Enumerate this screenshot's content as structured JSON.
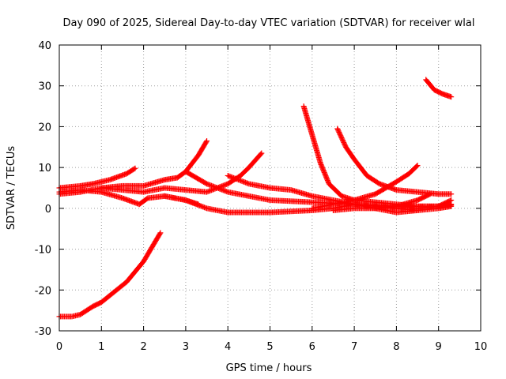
{
  "chart_data": {
    "type": "scatter",
    "title": "Day 090 of 2025, Sidereal Day-to-day VTEC variation (SDTVAR) for receiver wlal",
    "xlabel": "GPS time / hours",
    "ylabel": "SDTVAR / TECUs",
    "xlim": [
      0,
      10
    ],
    "ylim": [
      -30,
      40
    ],
    "x_ticks": [
      0,
      1,
      2,
      3,
      4,
      5,
      6,
      7,
      8,
      9,
      10
    ],
    "y_ticks": [
      -30,
      -20,
      -10,
      0,
      10,
      20,
      30,
      40
    ],
    "grid": true,
    "marker": "+",
    "color": "#ff0000",
    "series": [
      {
        "x": [
          0,
          0.5,
          0.8,
          1.2,
          1.6,
          1.8
        ],
        "y": [
          5,
          5.5,
          6,
          7,
          8.5,
          9.8
        ]
      },
      {
        "x": [
          0,
          0.5,
          1.0,
          1.5,
          1.9,
          2.1,
          2.5,
          3.0,
          3.3
        ],
        "y": [
          4,
          4.5,
          4,
          2.5,
          1,
          2.5,
          3,
          2,
          1
        ]
      },
      {
        "x": [
          0,
          0.5,
          1.0,
          1.5,
          2.0,
          2.5,
          2.8,
          3.0,
          3.3,
          3.5
        ],
        "y": [
          3.5,
          4,
          5,
          5.5,
          5.5,
          7,
          7.5,
          9,
          13,
          16.5
        ]
      },
      {
        "x": [
          0,
          0.3,
          0.5,
          0.8,
          1.0,
          1.3,
          1.6,
          2.0,
          2.4
        ],
        "y": [
          -26.5,
          -26.5,
          -26,
          -24,
          -23,
          -20.5,
          -18,
          -13,
          -6
        ]
      },
      {
        "x": [
          1.0,
          1.5,
          2.0,
          2.5,
          3.0,
          3.5,
          4.0,
          4.3,
          4.5,
          4.8
        ],
        "y": [
          5,
          4.5,
          4,
          5,
          4.5,
          4,
          6,
          8,
          10,
          13.5
        ]
      },
      {
        "x": [
          3.0,
          3.5,
          4.0,
          5.0,
          6.0,
          7.0,
          8.0,
          8.5
        ],
        "y": [
          9,
          6,
          4,
          2,
          1.5,
          1,
          0,
          -0.5
        ]
      },
      {
        "x": [
          2.5,
          3.0,
          3.5,
          4.0,
          5.0,
          6.0,
          6.5,
          7.0,
          8.0,
          9.0,
          9.3
        ],
        "y": [
          3,
          2,
          0,
          -1,
          -1,
          -0.5,
          0,
          1,
          0.5,
          0.5,
          1
        ]
      },
      {
        "x": [
          4.0,
          4.5,
          5.0,
          5.5,
          6.0,
          6.5,
          7.0,
          7.5,
          8.0,
          8.5,
          9.0,
          9.3
        ],
        "y": [
          8,
          6,
          5,
          4.5,
          3,
          2,
          1,
          0,
          -1,
          -0.5,
          0,
          0.5
        ]
      },
      {
        "x": [
          5.8,
          6.0,
          6.2,
          6.4,
          6.7,
          7.0,
          7.5,
          8.0,
          8.5,
          9.0,
          9.3
        ],
        "y": [
          25,
          18,
          11,
          6,
          3,
          2,
          1.5,
          1,
          0.5,
          0.5,
          0.8
        ]
      },
      {
        "x": [
          6.6,
          6.8,
          7.0,
          7.3,
          7.6,
          8.0,
          8.5,
          9.0,
          9.3
        ],
        "y": [
          19.5,
          15,
          12,
          8,
          6,
          4.5,
          4,
          3.5,
          3.5
        ]
      },
      {
        "x": [
          6.0,
          6.5,
          7.0,
          7.5,
          8.0,
          8.3,
          8.5
        ],
        "y": [
          0,
          1,
          2,
          3.5,
          6.5,
          8.5,
          10.5
        ]
      },
      {
        "x": [
          6.5,
          7.0,
          7.5,
          8.0,
          8.5,
          8.8
        ],
        "y": [
          -0.5,
          0,
          0,
          0.5,
          2,
          3.5
        ]
      },
      {
        "x": [
          8.7,
          8.9,
          9.1,
          9.3
        ],
        "y": [
          31.5,
          29,
          28,
          27.3
        ]
      },
      {
        "x": [
          8.0,
          8.5,
          9.0,
          9.3
        ],
        "y": [
          0.5,
          0,
          0.5,
          2
        ]
      }
    ]
  }
}
